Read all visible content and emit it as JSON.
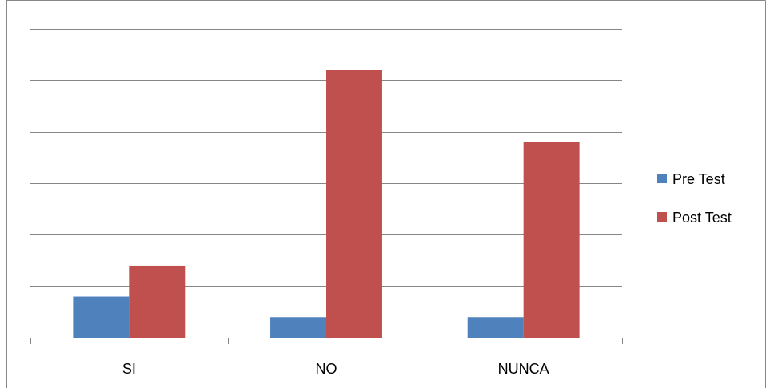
{
  "chart_data": {
    "type": "bar",
    "title": "",
    "xlabel": "",
    "ylabel": "",
    "categories": [
      "SI",
      "NO",
      "NUNCA"
    ],
    "series": [
      {
        "name": "Pre Test",
        "values": [
          0.8,
          0.4,
          0.4
        ],
        "color": "#4F81BD"
      },
      {
        "name": "Post Test",
        "values": [
          1.4,
          5.2,
          3.8
        ],
        "color": "#C0504D"
      }
    ],
    "ylim": [
      0,
      6
    ],
    "y_ticks": [
      0,
      1,
      2,
      3,
      4,
      5,
      6
    ],
    "y_tick_labels_visible": false,
    "grid": true,
    "legend_position": "right"
  }
}
